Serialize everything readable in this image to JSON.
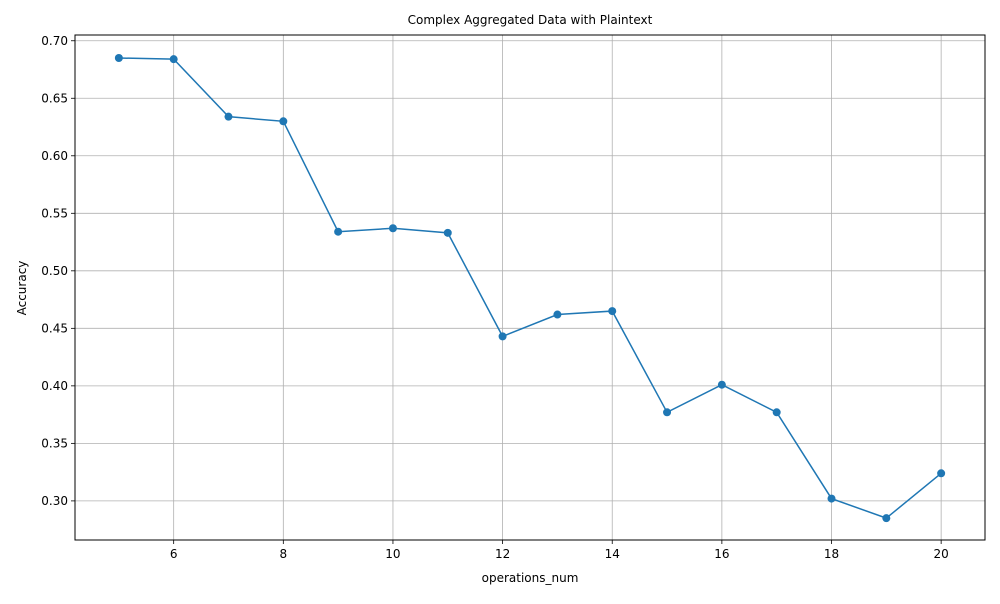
{
  "chart_data": {
    "type": "line",
    "title": "Complex Aggregated Data with Plaintext",
    "xlabel": "operations_num",
    "ylabel": "Accuracy",
    "x_ticks": [
      6,
      8,
      10,
      12,
      14,
      16,
      18,
      20
    ],
    "y_ticks": [
      0.3,
      0.35,
      0.4,
      0.45,
      0.5,
      0.55,
      0.6,
      0.65,
      0.7
    ],
    "xlim": [
      4.2,
      20.8
    ],
    "ylim": [
      0.266,
      0.705
    ],
    "grid": true,
    "marker": "circle",
    "colors": {
      "line": "#1f77b4",
      "grid": "#b0b0b0"
    },
    "series": [
      {
        "x": [
          5,
          6,
          7,
          8,
          9,
          10,
          11,
          12,
          13,
          14,
          15,
          16,
          17,
          18,
          19,
          20
        ],
        "y": [
          0.685,
          0.684,
          0.634,
          0.63,
          0.534,
          0.537,
          0.533,
          0.443,
          0.462,
          0.465,
          0.377,
          0.401,
          0.377,
          0.302,
          0.285,
          0.324
        ]
      }
    ]
  }
}
